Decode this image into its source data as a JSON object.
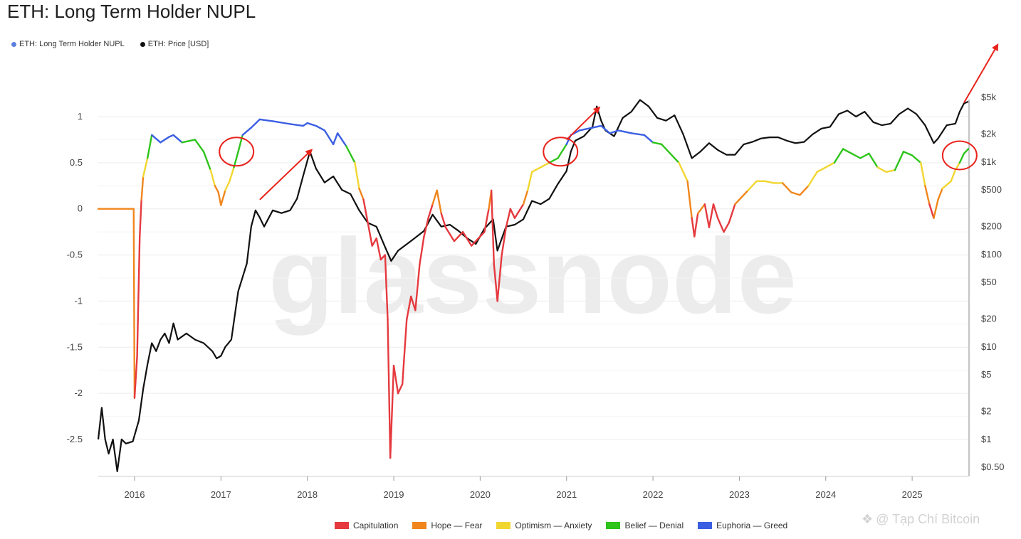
{
  "title": "ETH: Long Term Holder NUPL",
  "legend": {
    "series": [
      {
        "name": "ETH: Long Term Holder NUPL",
        "color": "#5b7fe0"
      },
      {
        "name": "ETH: Price [USD]",
        "color": "#111111"
      }
    ],
    "zones": [
      {
        "name": "Capitulation",
        "color": "#e5393e"
      },
      {
        "name": "Hope — Fear",
        "color": "#f0861c"
      },
      {
        "name": "Optimism — Anxiety",
        "color": "#f2d630"
      },
      {
        "name": "Belief — Denial",
        "color": "#2ec41b"
      },
      {
        "name": "Euphoria — Greed",
        "color": "#3b5fe3"
      }
    ]
  },
  "watermark": "glassnode",
  "credit": "@ Tạp Chí Bitcoin",
  "chart_data": {
    "type": "line",
    "x_ticks": [
      "2016",
      "2017",
      "2018",
      "2019",
      "2020",
      "2021",
      "2022",
      "2023",
      "2024",
      "2025"
    ],
    "x_range": [
      2015.58,
      2025.65
    ],
    "y_left_ticks": [
      "1",
      "0.5",
      "0",
      "-0.5",
      "-1",
      "-1.5",
      "-2",
      "-2.5"
    ],
    "y_left_range": [
      -2.95,
      1.0
    ],
    "y_right_ticks": [
      "$5k",
      "$2k",
      "$1k",
      "$500",
      "$200",
      "$100",
      "$50",
      "$20",
      "$10",
      "$5",
      "$2",
      "$1",
      "$0.50"
    ],
    "y_right_values": [
      5000,
      2000,
      1000,
      500,
      200,
      100,
      50,
      20,
      10,
      5,
      2,
      1,
      0.5
    ],
    "y_right_scale": "log",
    "grid": true,
    "series": [
      {
        "name": "ETH: Long Term Holder NUPL",
        "colored_by_zone": true,
        "points": [
          [
            2015.58,
            0.0
          ],
          [
            2015.99,
            0.0
          ],
          [
            2016.0,
            -2.05
          ],
          [
            2016.03,
            -1.6
          ],
          [
            2016.06,
            -0.3
          ],
          [
            2016.08,
            0.1
          ],
          [
            2016.1,
            0.35
          ],
          [
            2016.15,
            0.55
          ],
          [
            2016.2,
            0.8
          ],
          [
            2016.3,
            0.72
          ],
          [
            2016.4,
            0.78
          ],
          [
            2016.45,
            0.8
          ],
          [
            2016.55,
            0.72
          ],
          [
            2016.7,
            0.75
          ],
          [
            2016.8,
            0.62
          ],
          [
            2016.88,
            0.42
          ],
          [
            2016.93,
            0.25
          ],
          [
            2016.97,
            0.18
          ],
          [
            2017.0,
            0.04
          ],
          [
            2017.05,
            0.2
          ],
          [
            2017.1,
            0.3
          ],
          [
            2017.15,
            0.45
          ],
          [
            2017.2,
            0.62
          ],
          [
            2017.25,
            0.8
          ],
          [
            2017.35,
            0.88
          ],
          [
            2017.45,
            0.97
          ],
          [
            2017.6,
            0.95
          ],
          [
            2017.8,
            0.92
          ],
          [
            2017.95,
            0.9
          ],
          [
            2018.0,
            0.93
          ],
          [
            2018.1,
            0.9
          ],
          [
            2018.2,
            0.85
          ],
          [
            2018.3,
            0.7
          ],
          [
            2018.35,
            0.82
          ],
          [
            2018.45,
            0.68
          ],
          [
            2018.55,
            0.5
          ],
          [
            2018.6,
            0.22
          ],
          [
            2018.65,
            0.1
          ],
          [
            2018.7,
            -0.15
          ],
          [
            2018.75,
            -0.4
          ],
          [
            2018.8,
            -0.32
          ],
          [
            2018.85,
            -0.55
          ],
          [
            2018.9,
            -0.5
          ],
          [
            2018.93,
            -1.2
          ],
          [
            2018.96,
            -2.7
          ],
          [
            2019.0,
            -1.7
          ],
          [
            2019.05,
            -2.0
          ],
          [
            2019.1,
            -1.9
          ],
          [
            2019.15,
            -1.2
          ],
          [
            2019.2,
            -0.95
          ],
          [
            2019.25,
            -1.1
          ],
          [
            2019.3,
            -0.6
          ],
          [
            2019.35,
            -0.3
          ],
          [
            2019.4,
            -0.1
          ],
          [
            2019.45,
            0.05
          ],
          [
            2019.5,
            0.2
          ],
          [
            2019.55,
            -0.05
          ],
          [
            2019.6,
            -0.2
          ],
          [
            2019.7,
            -0.35
          ],
          [
            2019.8,
            -0.25
          ],
          [
            2019.9,
            -0.4
          ],
          [
            2020.0,
            -0.3
          ],
          [
            2020.05,
            -0.25
          ],
          [
            2020.1,
            0.0
          ],
          [
            2020.13,
            0.2
          ],
          [
            2020.16,
            -0.6
          ],
          [
            2020.2,
            -1.0
          ],
          [
            2020.25,
            -0.5
          ],
          [
            2020.3,
            -0.2
          ],
          [
            2020.35,
            0.0
          ],
          [
            2020.4,
            -0.1
          ],
          [
            2020.5,
            0.05
          ],
          [
            2020.55,
            0.2
          ],
          [
            2020.6,
            0.4
          ],
          [
            2020.7,
            0.45
          ],
          [
            2020.8,
            0.5
          ],
          [
            2020.9,
            0.55
          ],
          [
            2021.0,
            0.7
          ],
          [
            2021.05,
            0.8
          ],
          [
            2021.15,
            0.85
          ],
          [
            2021.3,
            0.88
          ],
          [
            2021.4,
            0.9
          ],
          [
            2021.5,
            0.82
          ],
          [
            2021.6,
            0.85
          ],
          [
            2021.75,
            0.82
          ],
          [
            2021.9,
            0.8
          ],
          [
            2022.0,
            0.72
          ],
          [
            2022.1,
            0.7
          ],
          [
            2022.2,
            0.6
          ],
          [
            2022.3,
            0.5
          ],
          [
            2022.4,
            0.3
          ],
          [
            2022.45,
            -0.1
          ],
          [
            2022.48,
            -0.3
          ],
          [
            2022.52,
            -0.05
          ],
          [
            2022.6,
            0.05
          ],
          [
            2022.65,
            -0.2
          ],
          [
            2022.7,
            0.05
          ],
          [
            2022.75,
            -0.1
          ],
          [
            2022.82,
            -0.25
          ],
          [
            2022.88,
            -0.15
          ],
          [
            2022.95,
            0.05
          ],
          [
            2023.0,
            0.1
          ],
          [
            2023.1,
            0.2
          ],
          [
            2023.2,
            0.3
          ],
          [
            2023.3,
            0.3
          ],
          [
            2023.4,
            0.28
          ],
          [
            2023.5,
            0.28
          ],
          [
            2023.6,
            0.18
          ],
          [
            2023.7,
            0.15
          ],
          [
            2023.8,
            0.25
          ],
          [
            2023.9,
            0.4
          ],
          [
            2024.0,
            0.45
          ],
          [
            2024.1,
            0.5
          ],
          [
            2024.2,
            0.65
          ],
          [
            2024.3,
            0.6
          ],
          [
            2024.4,
            0.55
          ],
          [
            2024.5,
            0.6
          ],
          [
            2024.6,
            0.45
          ],
          [
            2024.7,
            0.4
          ],
          [
            2024.8,
            0.42
          ],
          [
            2024.9,
            0.62
          ],
          [
            2025.0,
            0.58
          ],
          [
            2025.1,
            0.5
          ],
          [
            2025.15,
            0.25
          ],
          [
            2025.2,
            0.05
          ],
          [
            2025.25,
            -0.1
          ],
          [
            2025.3,
            0.1
          ],
          [
            2025.35,
            0.22
          ],
          [
            2025.45,
            0.3
          ],
          [
            2025.5,
            0.42
          ],
          [
            2025.55,
            0.5
          ],
          [
            2025.6,
            0.6
          ],
          [
            2025.65,
            0.65
          ]
        ]
      },
      {
        "name": "ETH: Price [USD]",
        "color": "#111111",
        "points": [
          [
            2015.58,
            1.0
          ],
          [
            2015.62,
            2.2
          ],
          [
            2015.66,
            1.0
          ],
          [
            2015.7,
            0.7
          ],
          [
            2015.75,
            1.0
          ],
          [
            2015.8,
            0.45
          ],
          [
            2015.85,
            1.0
          ],
          [
            2015.9,
            0.9
          ],
          [
            2015.98,
            0.95
          ],
          [
            2016.05,
            1.6
          ],
          [
            2016.1,
            3.5
          ],
          [
            2016.15,
            6.5
          ],
          [
            2016.2,
            11
          ],
          [
            2016.25,
            9
          ],
          [
            2016.3,
            12
          ],
          [
            2016.35,
            14
          ],
          [
            2016.4,
            11
          ],
          [
            2016.45,
            18
          ],
          [
            2016.5,
            12
          ],
          [
            2016.6,
            14
          ],
          [
            2016.7,
            12
          ],
          [
            2016.8,
            11
          ],
          [
            2016.9,
            9
          ],
          [
            2016.95,
            7.5
          ],
          [
            2017.0,
            8
          ],
          [
            2017.05,
            10
          ],
          [
            2017.12,
            12
          ],
          [
            2017.2,
            40
          ],
          [
            2017.3,
            80
          ],
          [
            2017.35,
            200
          ],
          [
            2017.4,
            300
          ],
          [
            2017.45,
            250
          ],
          [
            2017.5,
            200
          ],
          [
            2017.6,
            300
          ],
          [
            2017.7,
            280
          ],
          [
            2017.8,
            300
          ],
          [
            2017.88,
            400
          ],
          [
            2017.95,
            700
          ],
          [
            2018.03,
            1300
          ],
          [
            2018.1,
            850
          ],
          [
            2018.2,
            600
          ],
          [
            2018.3,
            700
          ],
          [
            2018.4,
            500
          ],
          [
            2018.5,
            450
          ],
          [
            2018.6,
            300
          ],
          [
            2018.7,
            220
          ],
          [
            2018.8,
            200
          ],
          [
            2018.9,
            120
          ],
          [
            2018.97,
            85
          ],
          [
            2019.05,
            110
          ],
          [
            2019.2,
            140
          ],
          [
            2019.35,
            180
          ],
          [
            2019.45,
            270
          ],
          [
            2019.55,
            200
          ],
          [
            2019.65,
            210
          ],
          [
            2019.75,
            180
          ],
          [
            2019.85,
            150
          ],
          [
            2019.95,
            130
          ],
          [
            2020.05,
            190
          ],
          [
            2020.15,
            240
          ],
          [
            2020.2,
            110
          ],
          [
            2020.3,
            200
          ],
          [
            2020.4,
            210
          ],
          [
            2020.5,
            240
          ],
          [
            2020.6,
            380
          ],
          [
            2020.7,
            350
          ],
          [
            2020.8,
            400
          ],
          [
            2020.9,
            580
          ],
          [
            2021.0,
            800
          ],
          [
            2021.05,
            1300
          ],
          [
            2021.1,
            1700
          ],
          [
            2021.2,
            1900
          ],
          [
            2021.3,
            2400
          ],
          [
            2021.35,
            4000
          ],
          [
            2021.4,
            2800
          ],
          [
            2021.45,
            2200
          ],
          [
            2021.55,
            1900
          ],
          [
            2021.65,
            3000
          ],
          [
            2021.75,
            3500
          ],
          [
            2021.85,
            4700
          ],
          [
            2021.95,
            4000
          ],
          [
            2022.05,
            3000
          ],
          [
            2022.15,
            2800
          ],
          [
            2022.25,
            3200
          ],
          [
            2022.35,
            2000
          ],
          [
            2022.45,
            1100
          ],
          [
            2022.55,
            1300
          ],
          [
            2022.65,
            1600
          ],
          [
            2022.75,
            1350
          ],
          [
            2022.85,
            1200
          ],
          [
            2022.95,
            1200
          ],
          [
            2023.05,
            1550
          ],
          [
            2023.15,
            1650
          ],
          [
            2023.25,
            1800
          ],
          [
            2023.35,
            1850
          ],
          [
            2023.45,
            1850
          ],
          [
            2023.55,
            1700
          ],
          [
            2023.65,
            1600
          ],
          [
            2023.75,
            1650
          ],
          [
            2023.85,
            2000
          ],
          [
            2023.95,
            2300
          ],
          [
            2024.05,
            2400
          ],
          [
            2024.15,
            3300
          ],
          [
            2024.25,
            3600
          ],
          [
            2024.35,
            3100
          ],
          [
            2024.45,
            3500
          ],
          [
            2024.55,
            2700
          ],
          [
            2024.65,
            2500
          ],
          [
            2024.75,
            2600
          ],
          [
            2024.85,
            3300
          ],
          [
            2024.95,
            3800
          ],
          [
            2025.05,
            3300
          ],
          [
            2025.15,
            2500
          ],
          [
            2025.25,
            1600
          ],
          [
            2025.3,
            1800
          ],
          [
            2025.4,
            2500
          ],
          [
            2025.5,
            2600
          ],
          [
            2025.55,
            3500
          ],
          [
            2025.6,
            4300
          ],
          [
            2025.65,
            4500
          ]
        ]
      }
    ],
    "annotations": [
      {
        "type": "circle",
        "x": 2017.18,
        "y_left": 0.62
      },
      {
        "type": "circle",
        "x": 2020.93,
        "y_left": 0.62
      },
      {
        "type": "circle",
        "x": 2025.55,
        "y_left": 0.58
      },
      {
        "type": "arrow",
        "from": [
          2017.45,
          0.1
        ],
        "to": [
          2018.05,
          0.64
        ]
      },
      {
        "type": "arrow",
        "from": [
          2021.0,
          0.75
        ],
        "to": [
          2021.38,
          1.1
        ]
      },
      {
        "type": "arrow",
        "from": [
          2025.6,
          1.15
        ],
        "to": [
          2025.99,
          1.78
        ]
      }
    ]
  }
}
